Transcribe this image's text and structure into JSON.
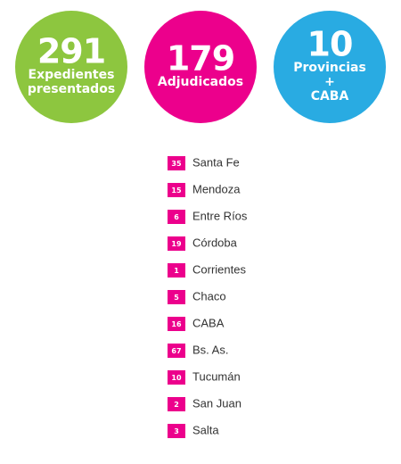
{
  "circles": [
    {
      "number": 291,
      "lines": [
        "Expedientes",
        "presentados"
      ],
      "color": "#8dc63f"
    },
    {
      "number": 179,
      "lines": [
        "Adjudicados"
      ],
      "color": "#ec008c"
    },
    {
      "number": 10,
      "lines": [
        "Provincias",
        "+",
        "CABA"
      ],
      "color": "#29abe2"
    }
  ],
  "list": {
    "badge_color": "#ec008c",
    "items": [
      {
        "number": 35,
        "name": "Santa Fe"
      },
      {
        "number": 15,
        "name": "Mendoza"
      },
      {
        "number": 6,
        "name": "Entre Ríos"
      },
      {
        "number": 19,
        "name": "Córdoba"
      },
      {
        "number": 1,
        "name": "Corrientes"
      },
      {
        "number": 5,
        "name": "Chaco"
      },
      {
        "number": 16,
        "name": "CABA"
      },
      {
        "number": 67,
        "name": "Bs. As."
      },
      {
        "number": 10,
        "name": "Tucumán"
      },
      {
        "number": 2,
        "name": "San Juan"
      },
      {
        "number": 3,
        "name": "Salta"
      }
    ]
  }
}
